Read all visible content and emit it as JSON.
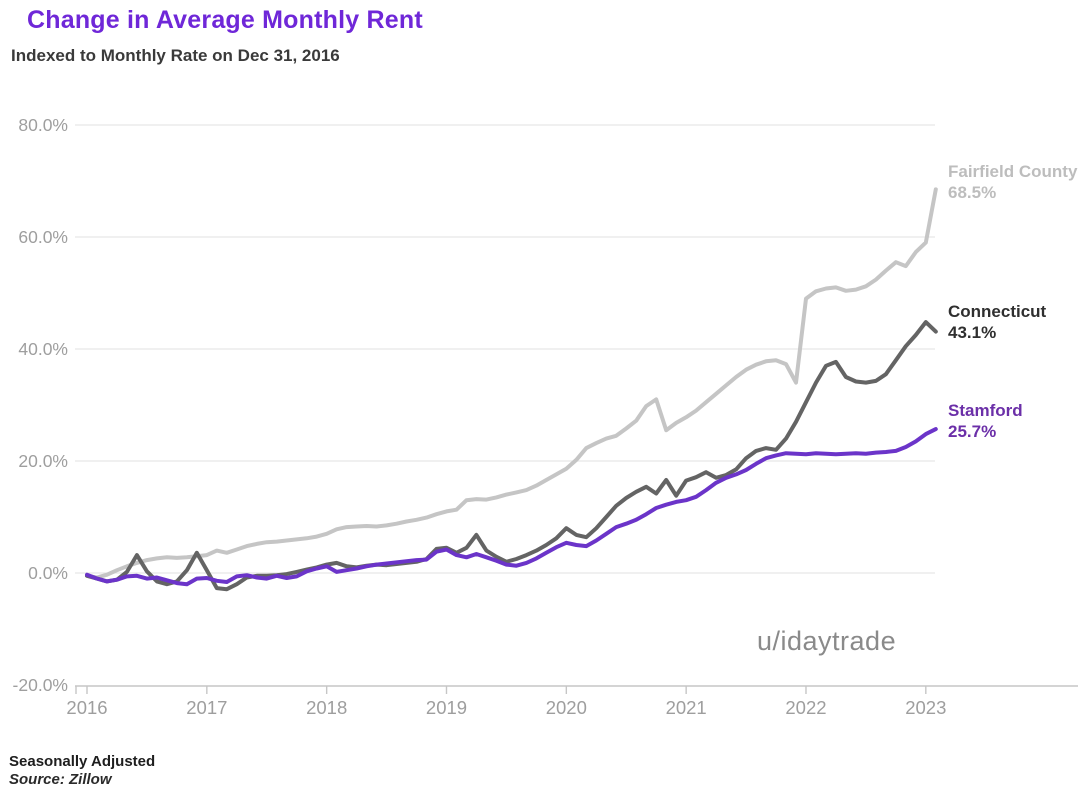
{
  "header": {
    "title": "Change in Average Monthly Rent",
    "subtitle": "Indexed to Monthly Rate on Dec 31, 2016",
    "title_color": "#6F27D8"
  },
  "watermark": "u/idaytrade",
  "footer": {
    "line1": "Seasonally Adjusted",
    "line2": "Source: Zillow"
  },
  "colors": {
    "grid": "#e8e8e8",
    "axis_line": "#c6c6c6",
    "tick_text": "#9e9e9e"
  },
  "chart_data": {
    "type": "line",
    "title": "Change in Average Monthly Rent",
    "subtitle": "Indexed to Monthly Rate on Dec 31, 2016",
    "xlabel": "",
    "ylabel": "",
    "x_start_year": 2016,
    "x_step_months": 1,
    "ylim": [
      -20,
      80
    ],
    "xlim": [
      2016,
      2023.1
    ],
    "grid": "horizontal",
    "legend_position": "right-edge-annotations",
    "yticks": [
      {
        "label": "80.0%",
        "value": 80
      },
      {
        "label": "60.0%",
        "value": 60
      },
      {
        "label": "40.0%",
        "value": 40
      },
      {
        "label": "20.0%",
        "value": 20
      },
      {
        "label": "0.0%",
        "value": 0
      },
      {
        "label": "-20.0%",
        "value": -20
      }
    ],
    "xticks": [
      {
        "label": "2016",
        "value": 2016
      },
      {
        "label": "2017",
        "value": 2017
      },
      {
        "label": "2018",
        "value": 2018
      },
      {
        "label": "2019",
        "value": 2019
      },
      {
        "label": "2020",
        "value": 2020
      },
      {
        "label": "2021",
        "value": 2021
      },
      {
        "label": "2022",
        "value": 2022
      },
      {
        "label": "2023",
        "value": 2023
      }
    ],
    "series": [
      {
        "name": "Fairfield County",
        "final_value_label": "68.5%",
        "final_value": 68.5,
        "color": "#c5c5c5",
        "label_color": "#bdbdbd",
        "values": [
          -0.5,
          -0.8,
          -0.3,
          0.5,
          1.2,
          1.8,
          2.3,
          2.6,
          2.8,
          2.7,
          2.8,
          3.0,
          3.2,
          4.0,
          3.6,
          4.2,
          4.8,
          5.2,
          5.5,
          5.6,
          5.8,
          6.0,
          6.2,
          6.5,
          7.0,
          7.8,
          8.2,
          8.3,
          8.4,
          8.3,
          8.5,
          8.8,
          9.2,
          9.5,
          9.9,
          10.5,
          11.0,
          11.3,
          13.0,
          13.2,
          13.1,
          13.5,
          14.0,
          14.4,
          14.8,
          15.6,
          16.6,
          17.6,
          18.6,
          20.2,
          22.3,
          23.2,
          24.0,
          24.5,
          25.8,
          27.2,
          29.8,
          31.0,
          25.5,
          26.8,
          27.8,
          29.0,
          30.5,
          32.0,
          33.5,
          35.0,
          36.3,
          37.2,
          37.8,
          38.0,
          37.3,
          34.0,
          49.0,
          50.3,
          50.8,
          51.0,
          50.4,
          50.6,
          51.2,
          52.4,
          54.0,
          55.5,
          54.8,
          57.3,
          59.0,
          68.5
        ]
      },
      {
        "name": "Connecticut",
        "final_value_label": "43.1%",
        "final_value": 43.1,
        "color": "#646464",
        "label_color": "#2f2f2f",
        "values": [
          -0.5,
          -1.0,
          -1.5,
          -1.2,
          0.2,
          3.2,
          0.3,
          -1.5,
          -2.0,
          -1.5,
          0.5,
          3.6,
          0.5,
          -2.7,
          -2.9,
          -2.0,
          -0.8,
          -0.5,
          -0.5,
          -0.4,
          -0.2,
          0.2,
          0.6,
          1.0,
          1.5,
          1.8,
          1.2,
          1.0,
          1.3,
          1.5,
          1.4,
          1.6,
          1.8,
          2.0,
          2.5,
          4.3,
          4.5,
          3.6,
          4.5,
          6.8,
          4.0,
          2.9,
          2.0,
          2.5,
          3.2,
          4.0,
          5.0,
          6.2,
          8.0,
          6.8,
          6.4,
          8.0,
          10.0,
          12.0,
          13.4,
          14.5,
          15.4,
          14.2,
          16.6,
          13.8,
          16.5,
          17.1,
          18.0,
          17.0,
          17.5,
          18.5,
          20.5,
          21.8,
          22.3,
          22.0,
          24.0,
          27.0,
          30.5,
          34.0,
          37.0,
          37.7,
          35.0,
          34.2,
          34.0,
          34.3,
          35.5,
          38.0,
          40.5,
          42.5,
          44.8,
          43.1
        ]
      },
      {
        "name": "Stamford",
        "final_value_label": "25.7%",
        "final_value": 25.7,
        "color": "#6B34C9",
        "label_color": "#6B2FA8",
        "values": [
          -0.3,
          -1.0,
          -1.5,
          -1.2,
          -0.6,
          -0.5,
          -1.0,
          -0.8,
          -1.3,
          -1.8,
          -2.0,
          -1.0,
          -0.9,
          -1.4,
          -1.6,
          -0.6,
          -0.4,
          -0.8,
          -1.0,
          -0.5,
          -0.9,
          -0.6,
          0.3,
          0.8,
          1.2,
          0.2,
          0.5,
          0.8,
          1.2,
          1.5,
          1.7,
          1.9,
          2.1,
          2.3,
          2.4,
          3.8,
          4.2,
          3.2,
          2.8,
          3.4,
          2.8,
          2.2,
          1.5,
          1.3,
          1.8,
          2.6,
          3.6,
          4.6,
          5.4,
          5.0,
          4.8,
          5.8,
          7.0,
          8.2,
          8.8,
          9.5,
          10.5,
          11.6,
          12.2,
          12.7,
          13.0,
          13.6,
          14.8,
          16.1,
          17.0,
          17.6,
          18.4,
          19.5,
          20.5,
          21.0,
          21.4,
          21.3,
          21.2,
          21.4,
          21.3,
          21.2,
          21.3,
          21.4,
          21.3,
          21.5,
          21.6,
          21.8,
          22.5,
          23.5,
          24.8,
          25.7
        ]
      }
    ]
  }
}
